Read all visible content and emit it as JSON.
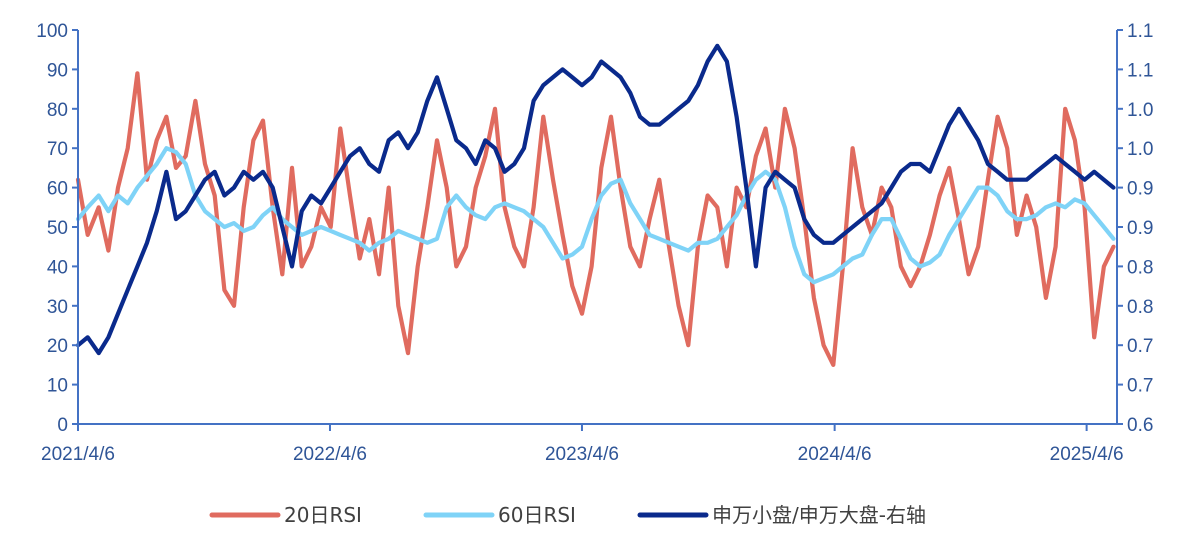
{
  "colors": {
    "axis": "#4472C4",
    "tick_text": "#2F5597",
    "rsi20": "#E06B5F",
    "rsi60": "#7FD3F7",
    "ratio": "#0A2A8C",
    "legend_text": "#404040"
  },
  "chart_data": {
    "type": "line",
    "title": "",
    "x_ticks": [
      "2021/4/6",
      "2022/4/6",
      "2023/4/6",
      "2024/4/6",
      "2025/4/6"
    ],
    "x_range": [
      "2021/4/6",
      "2025/5/20"
    ],
    "y_left": {
      "range": [
        0,
        100
      ],
      "ticks": [
        0,
        10,
        20,
        30,
        40,
        50,
        60,
        70,
        80,
        90,
        100
      ],
      "tick_labels": [
        "0",
        "10",
        "20",
        "30",
        "40",
        "50",
        "60",
        "70",
        "80",
        "90",
        "100"
      ]
    },
    "y_right": {
      "range": [
        0.6,
        1.1
      ],
      "tick_labels": [
        "0.6",
        "0.7",
        "0.7",
        "0.8",
        "0.8",
        "0.9",
        "0.9",
        "1.0",
        "1.0",
        "1.1",
        "1.1"
      ]
    },
    "grid": false,
    "legend_position": "bottom",
    "legend": [
      "20日RSI",
      "60日RSI",
      "申万小盘/申万大盘-右轴"
    ],
    "series": [
      {
        "name": "20日RSI",
        "axis": "left",
        "x": [
          "2021/4/6",
          "2021/4/20",
          "2021/5/6",
          "2021/5/20",
          "2021/6/3",
          "2021/6/17",
          "2021/7/1",
          "2021/7/15",
          "2021/7/29",
          "2021/8/12",
          "2021/8/26",
          "2021/9/9",
          "2021/9/23",
          "2021/10/7",
          "2021/10/21",
          "2021/11/4",
          "2021/11/18",
          "2021/12/2",
          "2021/12/16",
          "2021/12/30",
          "2022/1/13",
          "2022/1/27",
          "2022/2/10",
          "2022/2/24",
          "2022/3/10",
          "2022/3/24",
          "2022/4/7",
          "2022/4/21",
          "2022/5/5",
          "2022/5/19",
          "2022/6/2",
          "2022/6/16",
          "2022/6/30",
          "2022/7/14",
          "2022/7/28",
          "2022/8/11",
          "2022/8/25",
          "2022/9/8",
          "2022/9/22",
          "2022/10/6",
          "2022/10/20",
          "2022/11/3",
          "2022/11/17",
          "2022/12/1",
          "2022/12/15",
          "2022/12/29",
          "2023/1/12",
          "2023/1/26",
          "2023/2/9",
          "2023/2/23",
          "2023/3/9",
          "2023/3/23",
          "2023/4/6",
          "2023/4/20",
          "2023/5/4",
          "2023/5/18",
          "2023/6/1",
          "2023/6/15",
          "2023/6/29",
          "2023/7/13",
          "2023/7/27",
          "2023/8/10",
          "2023/8/24",
          "2023/9/7",
          "2023/9/21",
          "2023/10/5",
          "2023/10/19",
          "2023/11/2",
          "2023/11/16",
          "2023/11/30",
          "2023/12/14",
          "2023/12/28",
          "2024/1/11",
          "2024/1/25",
          "2024/2/8",
          "2024/2/22",
          "2024/3/7",
          "2024/3/21",
          "2024/4/4",
          "2024/4/18",
          "2024/5/2",
          "2024/5/16",
          "2024/5/30",
          "2024/6/13",
          "2024/6/27",
          "2024/7/11",
          "2024/7/25",
          "2024/8/8",
          "2024/8/22",
          "2024/9/5",
          "2024/9/19",
          "2024/10/3",
          "2024/10/17",
          "2024/10/31",
          "2024/11/14",
          "2024/11/28",
          "2024/12/12",
          "2024/12/26",
          "2025/1/9",
          "2025/1/23",
          "2025/2/6",
          "2025/2/20",
          "2025/3/6",
          "2025/3/20",
          "2025/4/3",
          "2025/4/17",
          "2025/5/1",
          "2025/5/15"
        ],
        "values": [
          62,
          48,
          55,
          44,
          60,
          70,
          89,
          62,
          72,
          78,
          65,
          68,
          82,
          66,
          58,
          34,
          30,
          55,
          72,
          77,
          55,
          38,
          65,
          40,
          45,
          55,
          50,
          75,
          58,
          42,
          52,
          38,
          60,
          30,
          18,
          40,
          55,
          72,
          60,
          40,
          45,
          60,
          68,
          80,
          55,
          45,
          40,
          55,
          78,
          62,
          48,
          35,
          28,
          40,
          65,
          78,
          60,
          45,
          40,
          52,
          62,
          45,
          30,
          20,
          45,
          58,
          55,
          40,
          60,
          55,
          68,
          75,
          60,
          80,
          70,
          52,
          32,
          20,
          15,
          40,
          70,
          55,
          48,
          60,
          55,
          40,
          35,
          40,
          48,
          58,
          65,
          52,
          38,
          45,
          62,
          78,
          70,
          48,
          58,
          50,
          32,
          45,
          80,
          72,
          55,
          22,
          40,
          45
        ],
        "ylim": [
          0,
          100
        ]
      },
      {
        "name": "60日RSI",
        "axis": "left",
        "x": [
          "2021/4/6",
          "2021/4/20",
          "2021/5/6",
          "2021/5/20",
          "2021/6/3",
          "2021/6/17",
          "2021/7/1",
          "2021/7/15",
          "2021/7/29",
          "2021/8/12",
          "2021/8/26",
          "2021/9/9",
          "2021/9/23",
          "2021/10/7",
          "2021/10/21",
          "2021/11/4",
          "2021/11/18",
          "2021/12/2",
          "2021/12/16",
          "2021/12/30",
          "2022/1/13",
          "2022/1/27",
          "2022/2/10",
          "2022/2/24",
          "2022/3/10",
          "2022/3/24",
          "2022/4/7",
          "2022/4/21",
          "2022/5/5",
          "2022/5/19",
          "2022/6/2",
          "2022/6/16",
          "2022/6/30",
          "2022/7/14",
          "2022/7/28",
          "2022/8/11",
          "2022/8/25",
          "2022/9/8",
          "2022/9/22",
          "2022/10/6",
          "2022/10/20",
          "2022/11/3",
          "2022/11/17",
          "2022/12/1",
          "2022/12/15",
          "2022/12/29",
          "2023/1/12",
          "2023/1/26",
          "2023/2/9",
          "2023/2/23",
          "2023/3/9",
          "2023/3/23",
          "2023/4/6",
          "2023/4/20",
          "2023/5/4",
          "2023/5/18",
          "2023/6/1",
          "2023/6/15",
          "2023/6/29",
          "2023/7/13",
          "2023/7/27",
          "2023/8/10",
          "2023/8/24",
          "2023/9/7",
          "2023/9/21",
          "2023/10/5",
          "2023/10/19",
          "2023/11/2",
          "2023/11/16",
          "2023/11/30",
          "2023/12/14",
          "2023/12/28",
          "2024/1/11",
          "2024/1/25",
          "2024/2/8",
          "2024/2/22",
          "2024/3/7",
          "2024/3/21",
          "2024/4/4",
          "2024/4/18",
          "2024/5/2",
          "2024/5/16",
          "2024/5/30",
          "2024/6/13",
          "2024/6/27",
          "2024/7/11",
          "2024/7/25",
          "2024/8/8",
          "2024/8/22",
          "2024/9/5",
          "2024/9/19",
          "2024/10/3",
          "2024/10/17",
          "2024/10/31",
          "2024/11/14",
          "2024/11/28",
          "2024/12/12",
          "2024/12/26",
          "2025/1/9",
          "2025/1/23",
          "2025/2/6",
          "2025/2/20",
          "2025/3/6",
          "2025/3/20",
          "2025/4/3",
          "2025/4/17",
          "2025/5/1",
          "2025/5/15"
        ],
        "values": [
          52,
          55,
          58,
          54,
          58,
          56,
          60,
          63,
          66,
          70,
          69,
          66,
          58,
          54,
          52,
          50,
          51,
          49,
          50,
          53,
          55,
          52,
          50,
          48,
          49,
          50,
          49,
          48,
          47,
          46,
          44,
          46,
          47,
          49,
          48,
          47,
          46,
          47,
          55,
          58,
          55,
          53,
          52,
          55,
          56,
          55,
          54,
          52,
          50,
          46,
          42,
          43,
          45,
          52,
          58,
          61,
          62,
          56,
          52,
          48,
          47,
          46,
          45,
          44,
          46,
          46,
          47,
          50,
          53,
          58,
          62,
          64,
          62,
          55,
          45,
          38,
          36,
          37,
          38,
          40,
          42,
          43,
          48,
          52,
          52,
          47,
          42,
          40,
          41,
          43,
          48,
          52,
          56,
          60,
          60,
          58,
          54,
          52,
          52,
          53,
          55,
          56,
          55,
          57,
          56,
          53,
          50,
          47
        ],
        "ylim": [
          0,
          100
        ]
      },
      {
        "name": "申万小盘/申万大盘-右轴",
        "axis": "right",
        "x": [
          "2021/4/6",
          "2021/4/20",
          "2021/5/6",
          "2021/5/20",
          "2021/6/3",
          "2021/6/17",
          "2021/7/1",
          "2021/7/15",
          "2021/7/29",
          "2021/8/12",
          "2021/8/26",
          "2021/9/9",
          "2021/9/23",
          "2021/10/7",
          "2021/10/21",
          "2021/11/4",
          "2021/11/18",
          "2021/12/2",
          "2021/12/16",
          "2021/12/30",
          "2022/1/13",
          "2022/1/27",
          "2022/2/10",
          "2022/2/24",
          "2022/3/10",
          "2022/3/24",
          "2022/4/7",
          "2022/4/21",
          "2022/5/5",
          "2022/5/19",
          "2022/6/2",
          "2022/6/16",
          "2022/6/30",
          "2022/7/14",
          "2022/7/28",
          "2022/8/11",
          "2022/8/25",
          "2022/9/8",
          "2022/9/22",
          "2022/10/6",
          "2022/10/20",
          "2022/11/3",
          "2022/11/17",
          "2022/12/1",
          "2022/12/15",
          "2022/12/29",
          "2023/1/12",
          "2023/1/26",
          "2023/2/9",
          "2023/2/23",
          "2023/3/9",
          "2023/3/23",
          "2023/4/6",
          "2023/4/20",
          "2023/5/4",
          "2023/5/18",
          "2023/6/1",
          "2023/6/15",
          "2023/6/29",
          "2023/7/13",
          "2023/7/27",
          "2023/8/10",
          "2023/8/24",
          "2023/9/7",
          "2023/9/21",
          "2023/10/5",
          "2023/10/19",
          "2023/11/2",
          "2023/11/16",
          "2023/11/30",
          "2023/12/14",
          "2023/12/28",
          "2024/1/11",
          "2024/1/25",
          "2024/2/8",
          "2024/2/22",
          "2024/3/7",
          "2024/3/21",
          "2024/4/4",
          "2024/4/18",
          "2024/5/2",
          "2024/5/16",
          "2024/5/30",
          "2024/6/13",
          "2024/6/27",
          "2024/7/11",
          "2024/7/25",
          "2024/8/8",
          "2024/8/22",
          "2024/9/5",
          "2024/9/19",
          "2024/10/3",
          "2024/10/17",
          "2024/10/31",
          "2024/11/14",
          "2024/11/28",
          "2024/12/12",
          "2024/12/26",
          "2025/1/9",
          "2025/1/23",
          "2025/2/6",
          "2025/2/20",
          "2025/3/6",
          "2025/3/20",
          "2025/4/3",
          "2025/4/17",
          "2025/5/1",
          "2025/5/15"
        ],
        "values": [
          0.7,
          0.71,
          0.69,
          0.71,
          0.74,
          0.77,
          0.8,
          0.83,
          0.87,
          0.92,
          0.86,
          0.87,
          0.89,
          0.91,
          0.92,
          0.89,
          0.9,
          0.92,
          0.91,
          0.92,
          0.9,
          0.85,
          0.8,
          0.87,
          0.89,
          0.88,
          0.9,
          0.92,
          0.94,
          0.95,
          0.93,
          0.92,
          0.96,
          0.97,
          0.95,
          0.97,
          1.01,
          1.04,
          1.0,
          0.96,
          0.95,
          0.93,
          0.96,
          0.95,
          0.92,
          0.93,
          0.95,
          1.01,
          1.03,
          1.04,
          1.05,
          1.04,
          1.03,
          1.04,
          1.06,
          1.05,
          1.04,
          1.02,
          0.99,
          0.98,
          0.98,
          0.99,
          1.0,
          1.01,
          1.03,
          1.06,
          1.08,
          1.06,
          0.99,
          0.9,
          0.8,
          0.9,
          0.92,
          0.91,
          0.9,
          0.86,
          0.84,
          0.83,
          0.83,
          0.84,
          0.85,
          0.86,
          0.87,
          0.88,
          0.9,
          0.92,
          0.93,
          0.93,
          0.92,
          0.95,
          0.98,
          1.0,
          0.98,
          0.96,
          0.93,
          0.92,
          0.91,
          0.91,
          0.91,
          0.92,
          0.93,
          0.94,
          0.93,
          0.92,
          0.91,
          0.92,
          0.91,
          0.9
        ],
        "ylim": [
          0.6,
          1.1
        ]
      }
    ]
  }
}
